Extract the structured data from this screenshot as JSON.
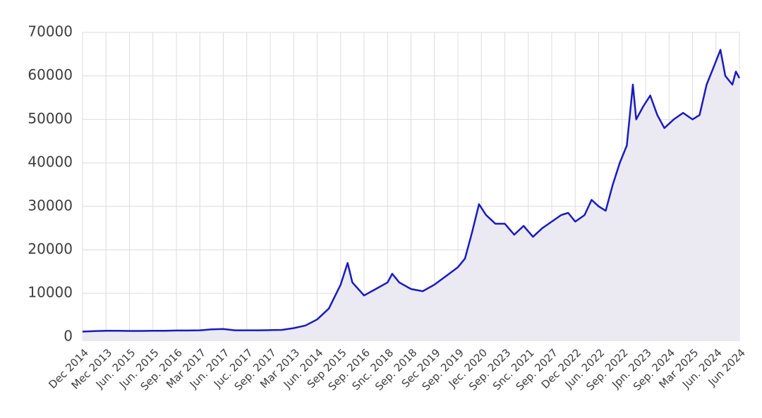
{
  "chart_data": {
    "type": "area",
    "x": [
      0,
      0.5,
      1,
      1.5,
      2,
      2.5,
      3,
      3.5,
      4,
      4.5,
      5,
      5.5,
      6,
      6.5,
      7,
      7.5,
      8,
      8.5,
      9,
      9.5,
      10,
      10.5,
      11,
      11.3,
      11.5,
      12,
      12.5,
      13,
      13.2,
      13.5,
      14,
      14.5,
      15,
      15.5,
      16,
      16.3,
      16.6,
      16.9,
      17.2,
      17.6,
      18,
      18.4,
      18.8,
      19.2,
      19.6,
      20,
      20.4,
      20.7,
      21,
      21.4,
      21.7,
      22,
      22.3,
      22.6,
      22.9,
      23.2,
      23.46,
      23.6,
      23.9,
      24.2,
      24.5,
      24.8,
      25.2,
      25.6,
      26,
      26.3,
      26.6,
      26.9,
      27.19,
      27.4,
      27.7,
      27.85,
      28
    ],
    "values": [
      1200,
      1300,
      1400,
      1400,
      1350,
      1350,
      1400,
      1400,
      1450,
      1450,
      1500,
      1700,
      1800,
      1500,
      1500,
      1500,
      1550,
      1600,
      2000,
      2600,
      4000,
      6500,
      12000,
      17000,
      12500,
      9500,
      11000,
      12500,
      14500,
      12500,
      11000,
      10500,
      12000,
      14000,
      16000,
      18000,
      24000,
      30500,
      28000,
      26000,
      26000,
      23500,
      25500,
      23000,
      25000,
      26500,
      28000,
      28500,
      26500,
      28000,
      31500,
      30000,
      29000,
      35000,
      40000,
      44000,
      58000,
      50000,
      53000,
      55500,
      51000,
      48000,
      50000,
      51500,
      50000,
      51000,
      58000,
      62000,
      66000,
      60000,
      58000,
      61000,
      59500
    ],
    "color": "#1a1abf",
    "fill": "#ebe9f1",
    "xlim": [
      0,
      28
    ],
    "xticks": [
      {
        "value": 0,
        "label": "Dec 2014"
      },
      {
        "value": 1,
        "label": "Mec 2013"
      },
      {
        "value": 2,
        "label": "Jun. 2015"
      },
      {
        "value": 3,
        "label": "Jun. 2015"
      },
      {
        "value": 4,
        "label": "Sep. 2016"
      },
      {
        "value": 5,
        "label": "Mar 2017"
      },
      {
        "value": 6,
        "label": "Jun. 2017"
      },
      {
        "value": 7,
        "label": "Juc. 2017"
      },
      {
        "value": 8,
        "label": "Sep. 2017"
      },
      {
        "value": 9,
        "label": "Mar 2013"
      },
      {
        "value": 10,
        "label": "Jun. 2014"
      },
      {
        "value": 11,
        "label": "Sep 2015"
      },
      {
        "value": 12,
        "label": "Sep. 2016"
      },
      {
        "value": 13,
        "label": "Snc. 2018"
      },
      {
        "value": 14,
        "label": "Sep. 2018"
      },
      {
        "value": 15,
        "label": "Sec 2019"
      },
      {
        "value": 16,
        "label": "Sep. 2019"
      },
      {
        "value": 17,
        "label": "Jec. 2020"
      },
      {
        "value": 18,
        "label": "Sep. 2023"
      },
      {
        "value": 19,
        "label": "Snc. 2021"
      },
      {
        "value": 20,
        "label": "Sep. 2027"
      },
      {
        "value": 21,
        "label": "Dec 2022"
      },
      {
        "value": 22,
        "label": "Jun. 2022"
      },
      {
        "value": 23,
        "label": "Sep. 2022"
      },
      {
        "value": 24,
        "label": "Jpn. 2023"
      },
      {
        "value": 25,
        "label": "Sep. 2024"
      },
      {
        "value": 26,
        "label": "Mar 2025"
      },
      {
        "value": 27,
        "label": "Jun. 2024"
      },
      {
        "value": 28,
        "label": "Jun 2024"
      }
    ],
    "ylim": [
      -1000,
      70000
    ],
    "yticks": [
      0,
      10000,
      20000,
      30000,
      40000,
      50000,
      60000,
      70000
    ],
    "grid": true
  }
}
